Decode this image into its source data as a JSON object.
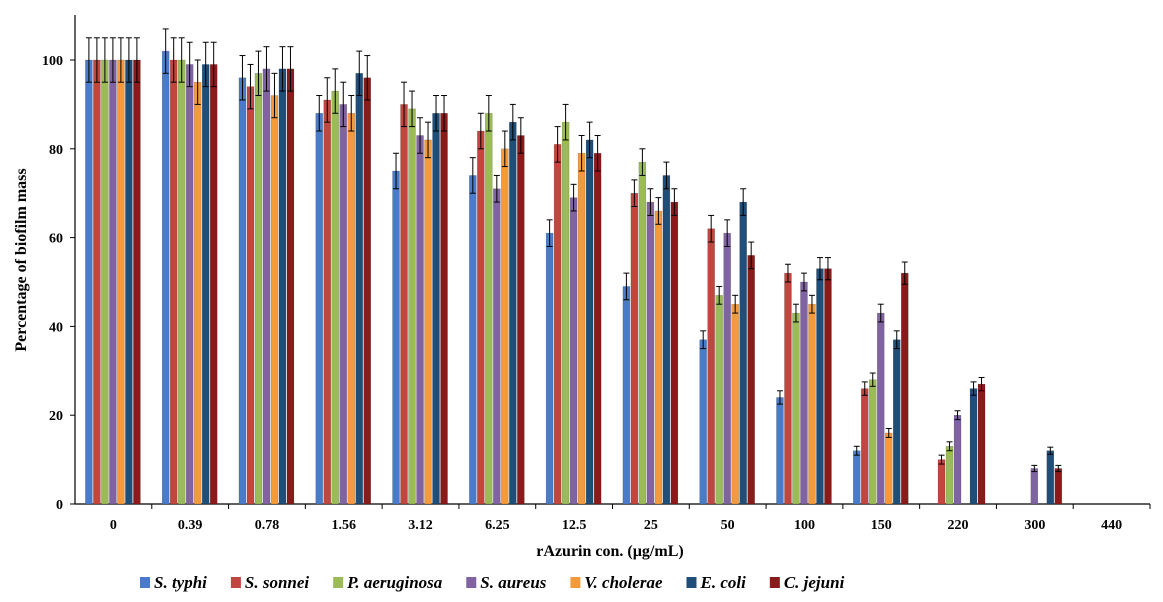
{
  "chart_data": {
    "type": "bar",
    "title": "",
    "xlabel": "rAzurin con. (µg/mL)",
    "ylabel": "Percentage of biofilm mass",
    "ylim": [
      0,
      100
    ],
    "yticks": [
      0,
      20,
      40,
      60,
      80,
      100
    ],
    "categories": [
      "0",
      "0.39",
      "0.78",
      "1.56",
      "3.12",
      "6.25",
      "12.5",
      "25",
      "50",
      "100",
      "150",
      "220",
      "300",
      "440"
    ],
    "error_bars": true,
    "legend_position": "bottom",
    "series": [
      {
        "name": "S. typhi",
        "color": "#4a7bc8",
        "values": [
          100,
          102,
          96,
          88,
          75,
          74,
          61,
          49,
          37,
          24,
          12,
          null,
          null,
          null
        ],
        "errors": [
          5,
          5,
          5,
          4,
          4,
          4,
          3,
          3,
          2,
          1.5,
          1,
          null,
          null,
          null
        ]
      },
      {
        "name": "S. sonnei",
        "color": "#c0463f",
        "values": [
          100,
          100,
          94,
          91,
          90,
          84,
          81,
          70,
          62,
          52,
          26,
          10,
          null,
          null
        ],
        "errors": [
          5,
          5,
          5,
          5,
          5,
          4,
          4,
          3,
          3,
          2,
          1.5,
          1,
          null,
          null
        ]
      },
      {
        "name": "P. aeruginosa",
        "color": "#9bbb59",
        "values": [
          100,
          100,
          97,
          93,
          89,
          88,
          86,
          77,
          47,
          43,
          28,
          13,
          null,
          null
        ],
        "errors": [
          5,
          5,
          5,
          5,
          4,
          4,
          4,
          3,
          2,
          2,
          1.5,
          1,
          null,
          null
        ]
      },
      {
        "name": "S. aureus",
        "color": "#8064a2",
        "values": [
          100,
          99,
          98,
          90,
          83,
          71,
          69,
          68,
          61,
          50,
          43,
          20,
          8,
          null
        ],
        "errors": [
          5,
          5,
          5,
          5,
          4,
          3,
          3,
          3,
          3,
          2,
          2,
          1,
          0.7,
          null
        ],
        "styled": true
      },
      {
        "name": "V. cholerae",
        "color": "#f39a3d",
        "values": [
          100,
          95,
          92,
          88,
          82,
          80,
          79,
          66,
          45,
          45,
          16,
          null,
          null,
          null
        ],
        "errors": [
          5,
          5,
          5,
          4,
          4,
          4,
          4,
          3,
          2,
          2,
          1,
          null,
          null,
          null
        ]
      },
      {
        "name": "E. coli",
        "color": "#1f4e79",
        "values": [
          100,
          99,
          98,
          97,
          88,
          86,
          82,
          74,
          68,
          53,
          37,
          26,
          12,
          null
        ],
        "errors": [
          5,
          5,
          5,
          5,
          4,
          4,
          4,
          3,
          3,
          2.5,
          2,
          1.5,
          0.8,
          null
        ]
      },
      {
        "name": "C. jejuni",
        "color": "#8b1a1a",
        "values": [
          100,
          99,
          98,
          96,
          88,
          83,
          79,
          68,
          56,
          53,
          52,
          27,
          8,
          null
        ],
        "errors": [
          5,
          5,
          5,
          5,
          4,
          4,
          4,
          3,
          3,
          2.5,
          2.5,
          1.5,
          0.7,
          null
        ]
      }
    ]
  }
}
